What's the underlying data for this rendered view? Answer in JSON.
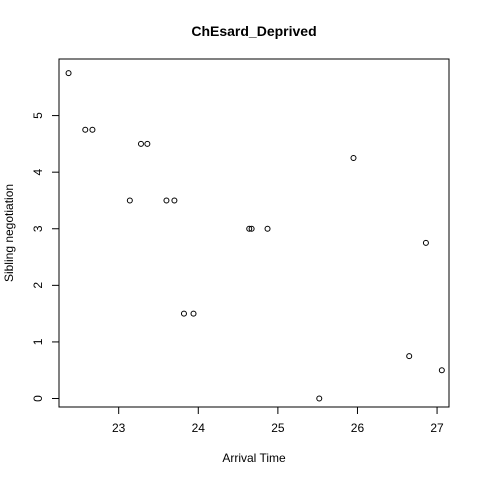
{
  "chart_data": {
    "type": "scatter",
    "title": "ChEsard_Deprived",
    "xlabel": "Arrival Time",
    "ylabel": "Sibling negotiation",
    "xlim": [
      22.25,
      27.15
    ],
    "ylim": [
      -0.15,
      6.0
    ],
    "x_ticks": [
      "23",
      "24",
      "25",
      "26",
      "27"
    ],
    "y_ticks": [
      "0",
      "1",
      "2",
      "3",
      "4",
      "5"
    ],
    "grid": false,
    "legend": "none",
    "marker": "open-circle",
    "color": "#000000",
    "points": [
      {
        "x": 22.37,
        "y": 5.75
      },
      {
        "x": 22.58,
        "y": 4.75
      },
      {
        "x": 22.67,
        "y": 4.75
      },
      {
        "x": 23.14,
        "y": 3.5
      },
      {
        "x": 23.28,
        "y": 4.5
      },
      {
        "x": 23.36,
        "y": 4.5
      },
      {
        "x": 23.6,
        "y": 3.5
      },
      {
        "x": 23.7,
        "y": 3.5
      },
      {
        "x": 23.82,
        "y": 1.5
      },
      {
        "x": 23.94,
        "y": 1.5
      },
      {
        "x": 24.64,
        "y": 3.0
      },
      {
        "x": 24.67,
        "y": 3.0
      },
      {
        "x": 24.87,
        "y": 3.0
      },
      {
        "x": 25.52,
        "y": 0.0
      },
      {
        "x": 25.95,
        "y": 4.25
      },
      {
        "x": 26.65,
        "y": 0.75
      },
      {
        "x": 26.86,
        "y": 2.75
      },
      {
        "x": 27.06,
        "y": 0.5
      }
    ]
  }
}
